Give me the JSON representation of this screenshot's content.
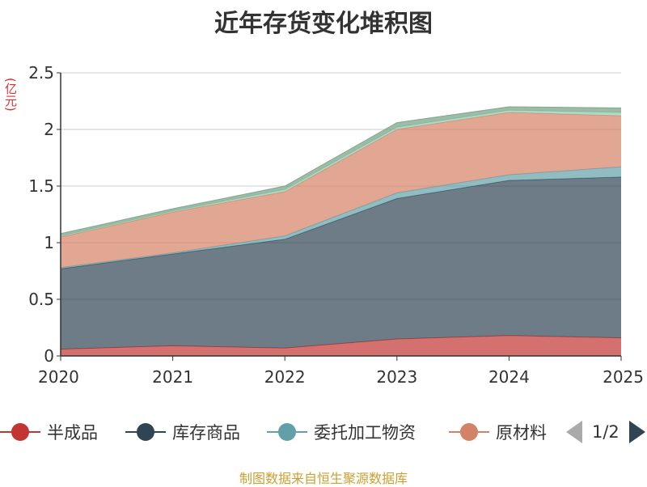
{
  "chart_data": {
    "type": "area",
    "stacked": true,
    "title": "近年存货变化堆积图",
    "ylabel": "(亿元)",
    "x": [
      "2020",
      "2021",
      "2022",
      "2023",
      "2024",
      "2025"
    ],
    "ylim": [
      0,
      2.5
    ],
    "yticks": [
      "0",
      "0.5",
      "1",
      "1.5",
      "2",
      "2.5"
    ],
    "grid": true,
    "legend_position": "bottom",
    "series": [
      {
        "name": "半成品",
        "color": "#c23531",
        "values": [
          0.06,
          0.09,
          0.07,
          0.15,
          0.18,
          0.16
        ]
      },
      {
        "name": "库存商品",
        "color": "#2f4554",
        "values": [
          0.71,
          0.81,
          0.96,
          1.24,
          1.37,
          1.42
        ]
      },
      {
        "name": "委托加工物资",
        "color": "#61a0a8",
        "values": [
          0.01,
          0.01,
          0.03,
          0.05,
          0.05,
          0.09
        ]
      },
      {
        "name": "原材料",
        "color": "#d48265",
        "values": [
          0.27,
          0.36,
          0.39,
          0.56,
          0.55,
          0.45
        ]
      },
      {
        "name": "",
        "color": "#91c7ae",
        "values": [
          0.01,
          0.01,
          0.02,
          0.02,
          0.02,
          0.03
        ]
      },
      {
        "name": "",
        "color": "#749f83",
        "values": [
          0.02,
          0.02,
          0.03,
          0.04,
          0.03,
          0.04
        ]
      }
    ]
  },
  "legend": {
    "visible_items": [
      "半成品",
      "库存商品",
      "委托加工物资",
      "原材料"
    ],
    "page_text": "1/2"
  },
  "footer": {
    "source": "制图数据来自恒生聚源数据库"
  }
}
